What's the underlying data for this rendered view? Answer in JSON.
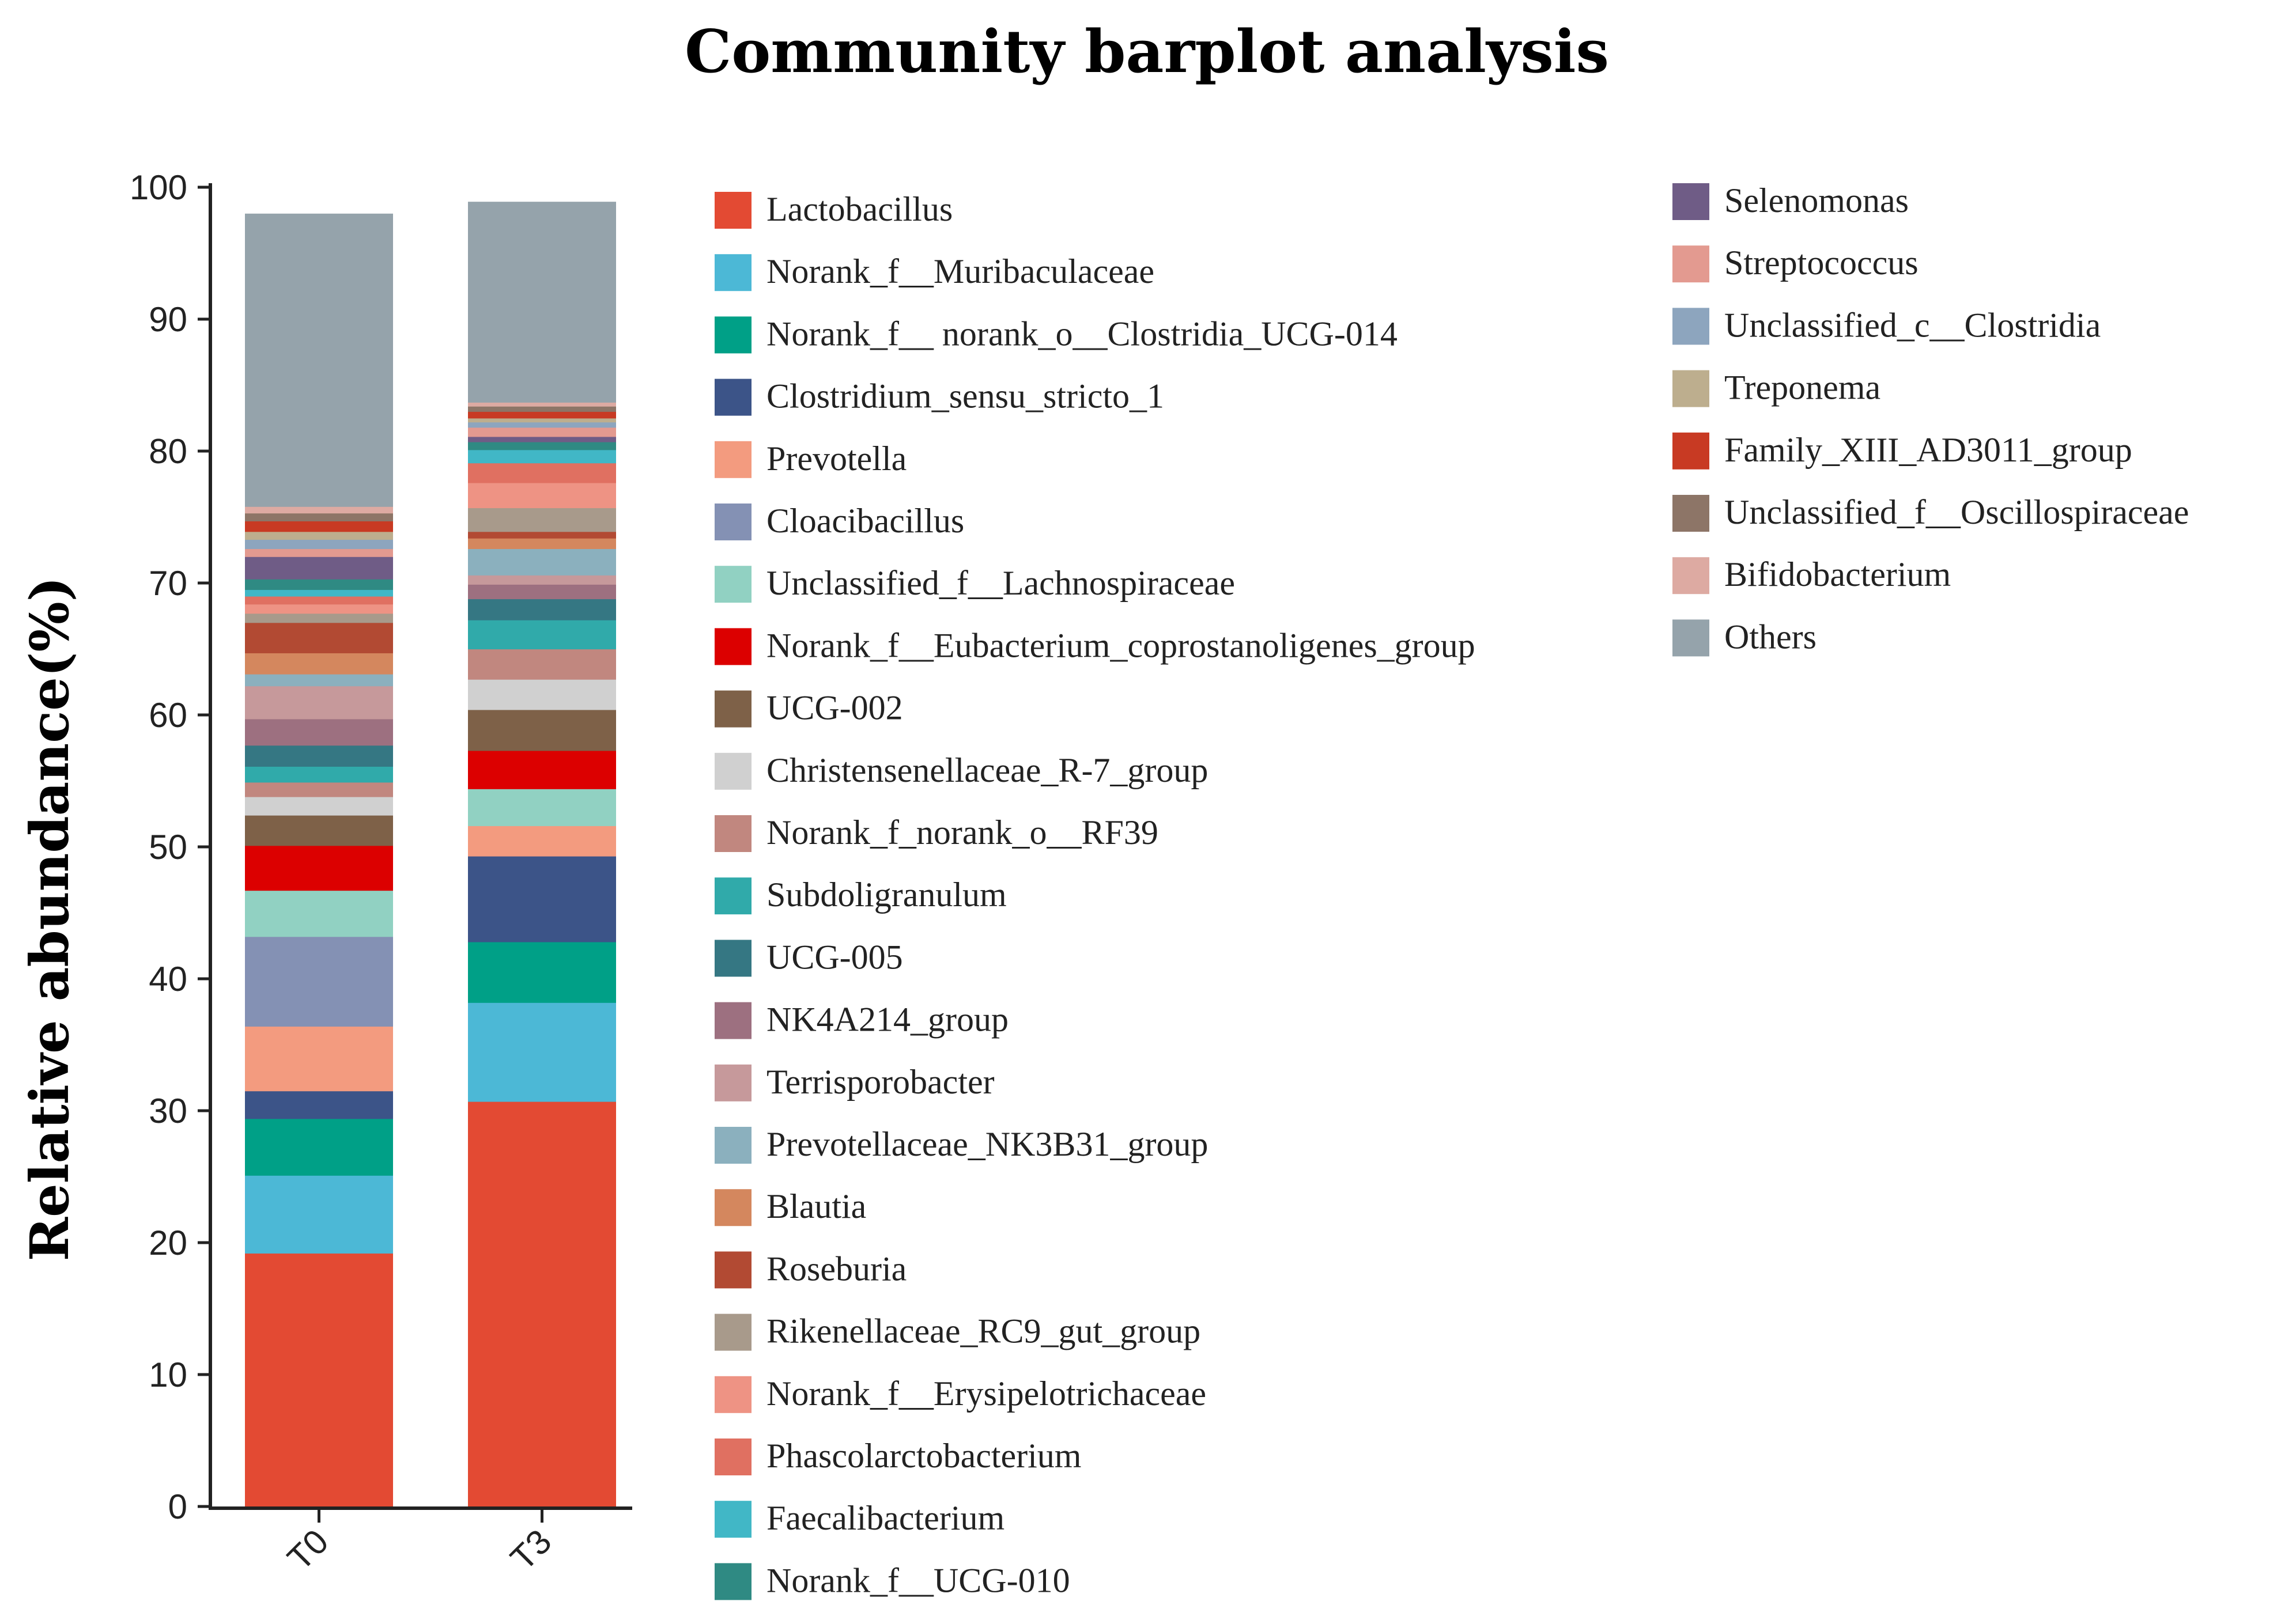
{
  "chart_data": {
    "type": "bar",
    "stacked": true,
    "title": "Community barplot analysis",
    "xlabel": "",
    "ylabel": "Relative abundance(%)",
    "ylim": [
      0,
      100
    ],
    "yticks": [
      0,
      10,
      20,
      30,
      40,
      50,
      60,
      70,
      80,
      90,
      100
    ],
    "categories": [
      "T0",
      "T3"
    ],
    "series": [
      {
        "name": "Lactobacillus",
        "color": "#E34A33",
        "values": [
          19.2,
          30.7
        ]
      },
      {
        "name": "Norank_f__Muribaculaceae",
        "color": "#4CB8D6",
        "values": [
          5.9,
          7.5
        ]
      },
      {
        "name": "Norank_f__ norank_o__Clostridia_UCG-014",
        "color": "#00A087",
        "values": [
          4.3,
          4.6
        ]
      },
      {
        "name": "Clostridium_sensu_stricto_1",
        "color": "#3C5488",
        "values": [
          2.1,
          6.5
        ]
      },
      {
        "name": "Prevotella",
        "color": "#F39B7F",
        "values": [
          4.9,
          2.3
        ]
      },
      {
        "name": "Cloacibacillus",
        "color": "#8491B4",
        "values": [
          6.8,
          0.0
        ]
      },
      {
        "name": "Unclassified_f__Lachnospiraceae",
        "color": "#91D1C2",
        "values": [
          3.5,
          2.8
        ]
      },
      {
        "name": "Norank_f__Eubacterium_coprostanoligenes_group",
        "color": "#DC0000",
        "values": [
          3.4,
          2.9
        ]
      },
      {
        "name": "UCG-002",
        "color": "#7E6148",
        "values": [
          2.3,
          3.1
        ]
      },
      {
        "name": "Christensenellaceae_R-7_group",
        "color": "#D0D0D0",
        "values": [
          1.4,
          2.3
        ]
      },
      {
        "name": "Norank_f_norank_o__RF39",
        "color": "#C1877F",
        "values": [
          1.1,
          2.3
        ]
      },
      {
        "name": "Subdoligranulum",
        "color": "#30AAAA",
        "values": [
          1.2,
          2.2
        ]
      },
      {
        "name": "UCG-005",
        "color": "#357783",
        "values": [
          1.6,
          1.6
        ]
      },
      {
        "name": "NK4A214_group",
        "color": "#9D7080",
        "values": [
          2.0,
          1.1
        ]
      },
      {
        "name": "Terrisporobacter",
        "color": "#C6999B",
        "values": [
          2.5,
          0.7
        ]
      },
      {
        "name": "Prevotellaceae_NK3B31_group",
        "color": "#8BB0BE",
        "values": [
          0.9,
          2.0
        ]
      },
      {
        "name": "Blautia",
        "color": "#D4875E",
        "values": [
          1.6,
          0.8
        ]
      },
      {
        "name": "Roseburia",
        "color": "#B24A33",
        "values": [
          2.3,
          0.5
        ]
      },
      {
        "name": "Rikenellaceae_RC9_gut_group",
        "color": "#A89A8B",
        "values": [
          0.7,
          1.8
        ]
      },
      {
        "name": "Norank_f__Erysipelotrichaceae",
        "color": "#EE9384",
        "values": [
          0.7,
          1.9
        ]
      },
      {
        "name": "Phascolarctobacterium",
        "color": "#E07061",
        "values": [
          0.6,
          1.5
        ]
      },
      {
        "name": "Faecalibacterium",
        "color": "#41B7C6",
        "values": [
          0.5,
          1.0
        ]
      },
      {
        "name": "Norank_f__UCG-010",
        "color": "#2F8A83",
        "values": [
          0.8,
          0.6
        ]
      },
      {
        "name": "Selenomonas",
        "color": "#6F5C86",
        "values": [
          1.7,
          0.4
        ]
      },
      {
        "name": "Streptococcus",
        "color": "#E39A90",
        "values": [
          0.6,
          0.7
        ]
      },
      {
        "name": "Unclassified_c__Clostridia",
        "color": "#8DA5BE",
        "values": [
          0.7,
          0.4
        ]
      },
      {
        "name": "Treponema",
        "color": "#BDAE8E",
        "values": [
          0.6,
          0.3
        ]
      },
      {
        "name": "Family_XIII_AD3011_group",
        "color": "#C83A23",
        "values": [
          0.8,
          0.5
        ]
      },
      {
        "name": "Unclassified_f__Oscillospiraceae",
        "color": "#8D7567",
        "values": [
          0.6,
          0.4
        ]
      },
      {
        "name": "Bifidobacterium",
        "color": "#DDAAA2",
        "values": [
          0.5,
          0.3
        ]
      },
      {
        "name": "Others",
        "color": "#95A3AB",
        "values": [
          22.2,
          15.2
        ]
      }
    ]
  }
}
